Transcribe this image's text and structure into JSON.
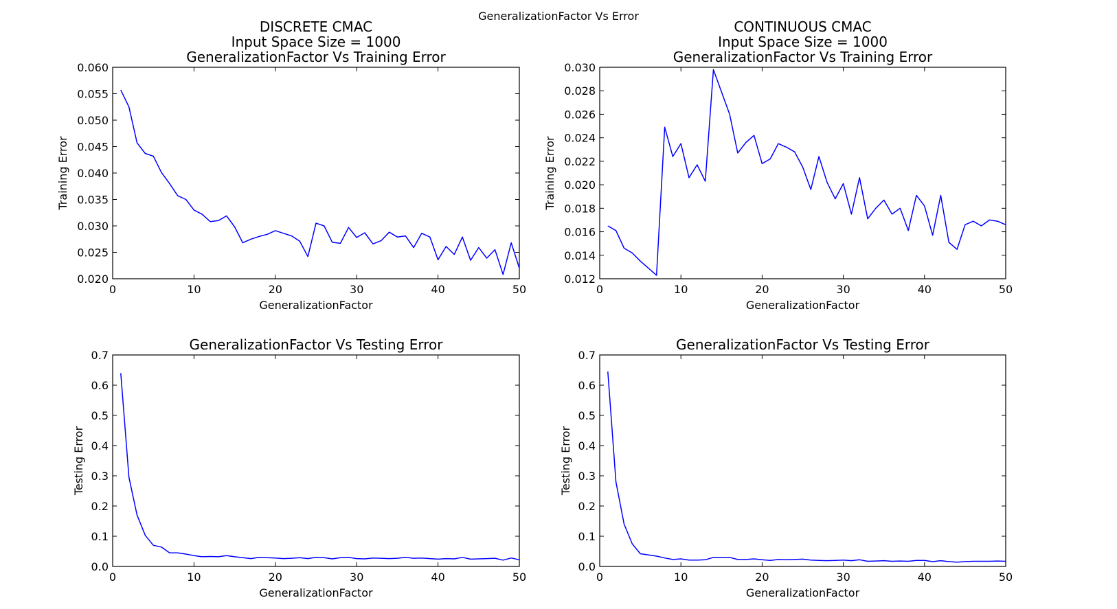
{
  "figure": {
    "suptitle": "GeneralizationFactor Vs Error"
  },
  "chart_data": [
    {
      "type": "line",
      "title": [
        "DISCRETE CMAC",
        "Input Space Size = 1000",
        "GeneralizationFactor Vs Training Error"
      ],
      "xlabel": "GeneralizationFactor",
      "ylabel": "Training Error",
      "xlim": [
        0,
        50
      ],
      "ylim": [
        0.02,
        0.06
      ],
      "xticks": [
        0,
        10,
        20,
        30,
        40,
        50
      ],
      "yticks": [
        0.02,
        0.025,
        0.03,
        0.035,
        0.04,
        0.045,
        0.05,
        0.055,
        0.06
      ],
      "ytick_decimals": 3,
      "series": [
        {
          "color": "#0000ff",
          "x": [
            1,
            2,
            3,
            4,
            5,
            6,
            7,
            8,
            9,
            10,
            11,
            12,
            13,
            14,
            15,
            16,
            17,
            18,
            19,
            20,
            21,
            22,
            23,
            24,
            25,
            26,
            27,
            28,
            29,
            30,
            31,
            32,
            33,
            34,
            35,
            36,
            37,
            38,
            39,
            40,
            41,
            42,
            43,
            44,
            45,
            46,
            47,
            48,
            49,
            50
          ],
          "values": [
            0.0557,
            0.0525,
            0.0457,
            0.0437,
            0.0432,
            0.0401,
            0.038,
            0.0357,
            0.035,
            0.033,
            0.0322,
            0.0308,
            0.031,
            0.0319,
            0.0298,
            0.0268,
            0.0275,
            0.028,
            0.0284,
            0.0291,
            0.0286,
            0.0281,
            0.0271,
            0.0242,
            0.0305,
            0.03,
            0.0269,
            0.0267,
            0.0297,
            0.0278,
            0.0287,
            0.0266,
            0.0272,
            0.0288,
            0.0279,
            0.0281,
            0.0259,
            0.0286,
            0.0279,
            0.0236,
            0.0261,
            0.0246,
            0.0279,
            0.0235,
            0.0259,
            0.0239,
            0.0255,
            0.0208,
            0.0268,
            0.022
          ]
        }
      ]
    },
    {
      "type": "line",
      "title": [
        "CONTINUOUS CMAC",
        "Input Space Size = 1000",
        "GeneralizationFactor Vs Training Error"
      ],
      "xlabel": "GeneralizationFactor",
      "ylabel": "Training Error",
      "xlim": [
        0,
        50
      ],
      "ylim": [
        0.012,
        0.03
      ],
      "xticks": [
        0,
        10,
        20,
        30,
        40,
        50
      ],
      "yticks": [
        0.012,
        0.014,
        0.016,
        0.018,
        0.02,
        0.022,
        0.024,
        0.026,
        0.028,
        0.03
      ],
      "ytick_decimals": 3,
      "series": [
        {
          "color": "#0000ff",
          "x": [
            1,
            2,
            3,
            4,
            5,
            6,
            7,
            8,
            9,
            10,
            11,
            12,
            13,
            14,
            15,
            16,
            17,
            18,
            19,
            20,
            21,
            22,
            23,
            24,
            25,
            26,
            27,
            28,
            29,
            30,
            31,
            32,
            33,
            34,
            35,
            36,
            37,
            38,
            39,
            40,
            41,
            42,
            43,
            44,
            45,
            46,
            47,
            48,
            49,
            50
          ],
          "values": [
            0.0165,
            0.0161,
            0.0146,
            0.0142,
            0.0135,
            0.0129,
            0.0123,
            0.0249,
            0.0224,
            0.0235,
            0.0206,
            0.0217,
            0.0203,
            0.0298,
            0.0279,
            0.026,
            0.0227,
            0.0236,
            0.0242,
            0.0218,
            0.0222,
            0.0235,
            0.0232,
            0.0228,
            0.0215,
            0.0196,
            0.0224,
            0.0202,
            0.0188,
            0.0201,
            0.0175,
            0.0206,
            0.0171,
            0.018,
            0.0187,
            0.0175,
            0.018,
            0.0161,
            0.0191,
            0.0182,
            0.0157,
            0.0191,
            0.0151,
            0.0145,
            0.0166,
            0.0169,
            0.0165,
            0.017,
            0.0169,
            0.0166
          ]
        }
      ]
    },
    {
      "type": "line",
      "title": [
        "GeneralizationFactor Vs Testing Error"
      ],
      "xlabel": "GeneralizationFactor",
      "ylabel": "Testing Error",
      "xlim": [
        0,
        50
      ],
      "ylim": [
        0,
        0.7
      ],
      "xticks": [
        0,
        10,
        20,
        30,
        40,
        50
      ],
      "yticks": [
        0.0,
        0.1,
        0.2,
        0.3,
        0.4,
        0.5,
        0.6,
        0.7
      ],
      "ytick_decimals": 1,
      "series": [
        {
          "color": "#0000ff",
          "x": [
            1,
            2,
            3,
            4,
            5,
            6,
            7,
            8,
            9,
            10,
            11,
            12,
            13,
            14,
            15,
            16,
            17,
            18,
            19,
            20,
            21,
            22,
            23,
            24,
            25,
            26,
            27,
            28,
            29,
            30,
            31,
            32,
            33,
            34,
            35,
            36,
            37,
            38,
            39,
            40,
            41,
            42,
            43,
            44,
            45,
            46,
            47,
            48,
            49,
            50
          ],
          "values": [
            0.64,
            0.295,
            0.17,
            0.103,
            0.07,
            0.064,
            0.045,
            0.045,
            0.041,
            0.036,
            0.032,
            0.033,
            0.032,
            0.036,
            0.032,
            0.029,
            0.026,
            0.03,
            0.029,
            0.028,
            0.026,
            0.027,
            0.029,
            0.026,
            0.03,
            0.029,
            0.025,
            0.029,
            0.03,
            0.026,
            0.025,
            0.028,
            0.027,
            0.026,
            0.027,
            0.03,
            0.027,
            0.028,
            0.026,
            0.024,
            0.026,
            0.025,
            0.03,
            0.024,
            0.025,
            0.026,
            0.027,
            0.021,
            0.028,
            0.022
          ]
        }
      ]
    },
    {
      "type": "line",
      "title": [
        "GeneralizationFactor Vs Testing Error"
      ],
      "xlabel": "GeneralizationFactor",
      "ylabel": "Testing Error",
      "xlim": [
        0,
        50
      ],
      "ylim": [
        0,
        0.7
      ],
      "xticks": [
        0,
        10,
        20,
        30,
        40,
        50
      ],
      "yticks": [
        0.0,
        0.1,
        0.2,
        0.3,
        0.4,
        0.5,
        0.6,
        0.7
      ],
      "ytick_decimals": 1,
      "series": [
        {
          "color": "#0000ff",
          "x": [
            1,
            2,
            3,
            4,
            5,
            6,
            7,
            8,
            9,
            10,
            11,
            12,
            13,
            14,
            15,
            16,
            17,
            18,
            19,
            20,
            21,
            22,
            23,
            24,
            25,
            26,
            27,
            28,
            29,
            30,
            31,
            32,
            33,
            34,
            35,
            36,
            37,
            38,
            39,
            40,
            41,
            42,
            43,
            44,
            45,
            46,
            47,
            48,
            49,
            50
          ],
          "values": [
            0.645,
            0.28,
            0.14,
            0.075,
            0.042,
            0.038,
            0.034,
            0.028,
            0.023,
            0.025,
            0.021,
            0.021,
            0.022,
            0.03,
            0.029,
            0.03,
            0.023,
            0.023,
            0.025,
            0.022,
            0.02,
            0.023,
            0.022,
            0.023,
            0.024,
            0.021,
            0.02,
            0.019,
            0.02,
            0.021,
            0.019,
            0.022,
            0.017,
            0.018,
            0.019,
            0.017,
            0.018,
            0.017,
            0.02,
            0.02,
            0.016,
            0.019,
            0.016,
            0.014,
            0.016,
            0.017,
            0.017,
            0.017,
            0.018,
            0.017
          ]
        }
      ]
    }
  ]
}
